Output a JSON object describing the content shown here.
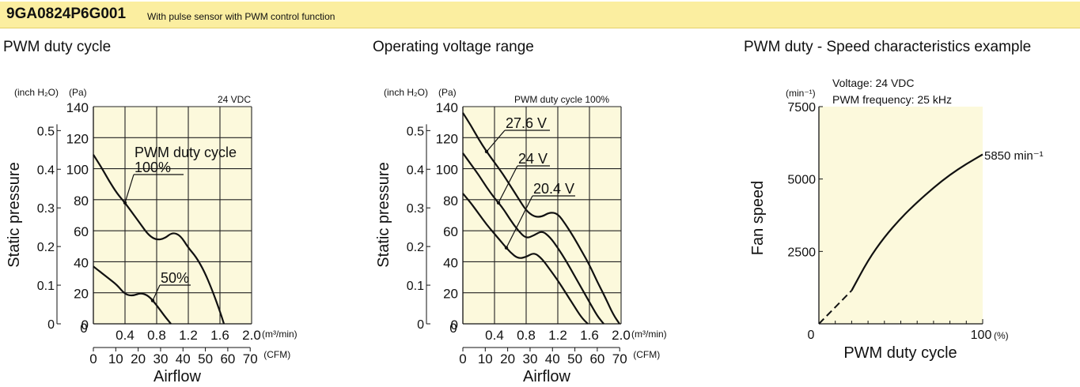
{
  "header": {
    "model": "9GA0824P6G001",
    "subtitle": "With pulse sensor with PWM control function"
  },
  "sections": [
    {
      "title": "PWM duty cycle"
    },
    {
      "title": "Operating voltage range"
    },
    {
      "title": "PWM duty - Speed characteristics example"
    }
  ],
  "colors": {
    "banner": "#fbeea0",
    "plot_bg": "#fcf9dc",
    "line": "#111111"
  },
  "chart_data": [
    {
      "type": "line",
      "condition": "24 VDC",
      "legend_title": "PWM duty cycle",
      "xlabel": "Airflow",
      "ylabel": "Static pressure",
      "x_unit": "(m³/min)",
      "x_unit_cfm": "(CFM)",
      "y_unit_inch": "(inch H₂O)",
      "y_unit_pa": "(Pa)",
      "xlim": [
        0,
        2.0
      ],
      "ylim": [
        0,
        140
      ],
      "x_ticks": [
        "0.4",
        "0.8",
        "1.2",
        "1.6",
        "2.0"
      ],
      "y_ticks": [
        "0",
        "20",
        "40",
        "60",
        "80",
        "100",
        "120",
        "140"
      ],
      "cfm_ticks": [
        "0",
        "10",
        "20",
        "30",
        "40",
        "50",
        "60",
        "70"
      ],
      "inch_ticks": [
        "0",
        "0.1",
        "0.2",
        "0.3",
        "0.4",
        "0.5"
      ],
      "grid": true,
      "series": [
        {
          "name": "100%",
          "x": [
            0,
            0.1,
            0.2,
            0.3,
            0.4,
            0.5,
            0.6,
            0.7,
            0.8,
            0.9,
            1.0,
            1.1,
            1.2,
            1.3,
            1.4,
            1.5,
            1.6,
            1.65
          ],
          "y": [
            109,
            101,
            92,
            84,
            78,
            71,
            64,
            57,
            54,
            55,
            59,
            57,
            49,
            43,
            34,
            22,
            8,
            0
          ]
        },
        {
          "name": "50%",
          "x": [
            0,
            0.1,
            0.2,
            0.3,
            0.4,
            0.5,
            0.6,
            0.7,
            0.8,
            0.9,
            0.98
          ],
          "y": [
            37,
            33,
            29,
            25,
            19,
            18,
            20,
            18,
            12,
            5,
            0
          ]
        }
      ]
    },
    {
      "type": "line",
      "condition": "PWM duty cycle 100%",
      "xlabel": "Airflow",
      "ylabel": "Static pressure",
      "x_unit": "(m³/min)",
      "x_unit_cfm": "(CFM)",
      "y_unit_inch": "(inch H₂O)",
      "y_unit_pa": "(Pa)",
      "xlim": [
        0,
        2.0
      ],
      "ylim": [
        0,
        140
      ],
      "x_ticks": [
        "0.4",
        "0.8",
        "1.2",
        "1.6",
        "2.0"
      ],
      "y_ticks": [
        "0",
        "20",
        "40",
        "60",
        "80",
        "100",
        "120",
        "140"
      ],
      "cfm_ticks": [
        "0",
        "10",
        "20",
        "30",
        "40",
        "50",
        "60",
        "70"
      ],
      "inch_ticks": [
        "0",
        "0.1",
        "0.2",
        "0.3",
        "0.4",
        "0.5"
      ],
      "grid": true,
      "series": [
        {
          "name": "27.6 V",
          "x": [
            0,
            0.1,
            0.2,
            0.3,
            0.4,
            0.5,
            0.6,
            0.7,
            0.8,
            0.9,
            1.0,
            1.1,
            1.2,
            1.3,
            1.4,
            1.5,
            1.6,
            1.7,
            1.8,
            1.9,
            1.98
          ],
          "y": [
            136,
            128,
            119,
            111,
            104,
            97,
            89,
            81,
            73,
            69,
            69,
            72,
            71,
            64,
            56,
            47,
            38,
            27,
            17,
            6,
            0
          ]
        },
        {
          "name": "24 V",
          "x": [
            0,
            0.1,
            0.2,
            0.3,
            0.4,
            0.5,
            0.6,
            0.7,
            0.8,
            0.9,
            1.0,
            1.1,
            1.2,
            1.3,
            1.4,
            1.5,
            1.6,
            1.7,
            1.78
          ],
          "y": [
            110,
            103,
            96,
            88,
            81,
            75,
            67,
            60,
            55,
            57,
            60,
            56,
            49,
            41,
            32,
            23,
            14,
            5,
            0
          ]
        },
        {
          "name": "20.4 V",
          "x": [
            0,
            0.1,
            0.2,
            0.3,
            0.4,
            0.5,
            0.6,
            0.7,
            0.8,
            0.9,
            1.0,
            1.1,
            1.2,
            1.3,
            1.4,
            1.5,
            1.58
          ],
          "y": [
            84,
            78,
            71,
            64,
            58,
            52,
            46,
            42,
            43,
            46,
            42,
            35,
            28,
            20,
            12,
            4,
            0
          ]
        }
      ]
    },
    {
      "type": "line",
      "notes": [
        "Voltage: 24 VDC",
        "PWM frequency: 25 kHz"
      ],
      "xlabel": "PWM duty cycle",
      "ylabel": "Fan speed",
      "x_unit": "(%)",
      "y_unit": "(min⁻¹)",
      "xlim": [
        0,
        100
      ],
      "ylim": [
        0,
        7500
      ],
      "x_ticks": [
        "0",
        "100"
      ],
      "y_ticks": [
        "2500",
        "5000",
        "7500"
      ],
      "grid": false,
      "end_label": "5850 min⁻¹",
      "dashed": {
        "x": [
          0,
          20
        ],
        "y": [
          0,
          1150
        ]
      },
      "series": [
        {
          "x": [
            20,
            30,
            40,
            50,
            60,
            70,
            80,
            90,
            100
          ],
          "y": [
            1150,
            2200,
            3000,
            3650,
            4200,
            4700,
            5150,
            5520,
            5850
          ]
        }
      ]
    }
  ]
}
